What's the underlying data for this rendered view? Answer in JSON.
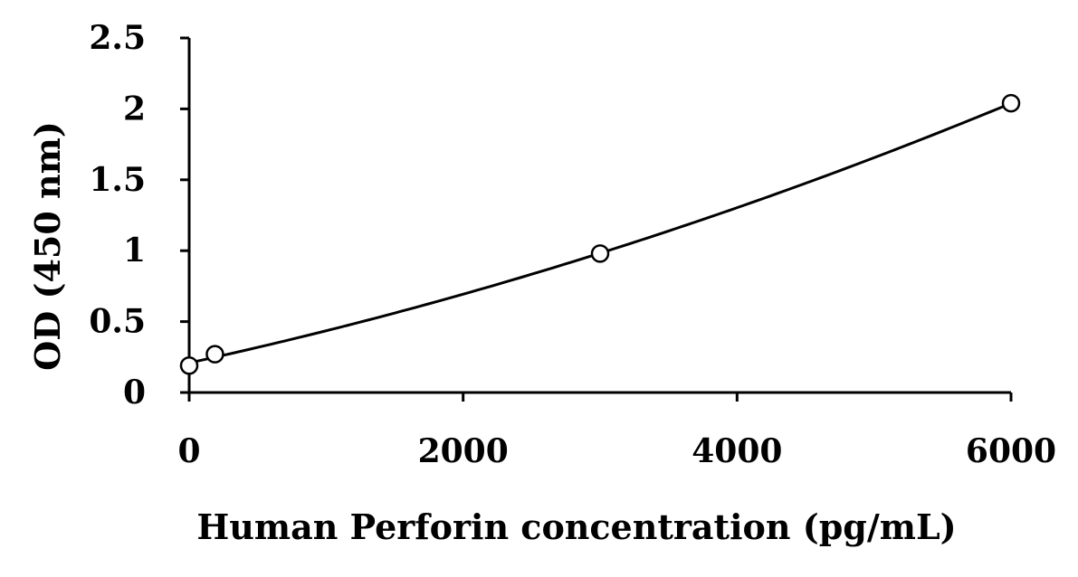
{
  "chart_data": {
    "type": "scatter",
    "title": "",
    "xlabel": "Human Perforin concentration (pg/mL)",
    "ylabel": "OD (450 nm)",
    "xlim": [
      0,
      6000
    ],
    "ylim": [
      0,
      2.5
    ],
    "x_ticks": [
      "0",
      "2000",
      "4000",
      "6000"
    ],
    "y_ticks": [
      "0",
      "0.5",
      "1",
      "1.5",
      "2",
      "2.5"
    ],
    "grid": false,
    "legend": "none",
    "series": [
      {
        "x": [
          0,
          188,
          3000,
          6000
        ],
        "y": [
          0.19,
          0.27,
          0.98,
          2.04
        ],
        "marker": "open-circle",
        "fit_line": "smooth-curve"
      }
    ],
    "colors": {
      "line": "#000000",
      "marker_fill": "#ffffff"
    }
  }
}
